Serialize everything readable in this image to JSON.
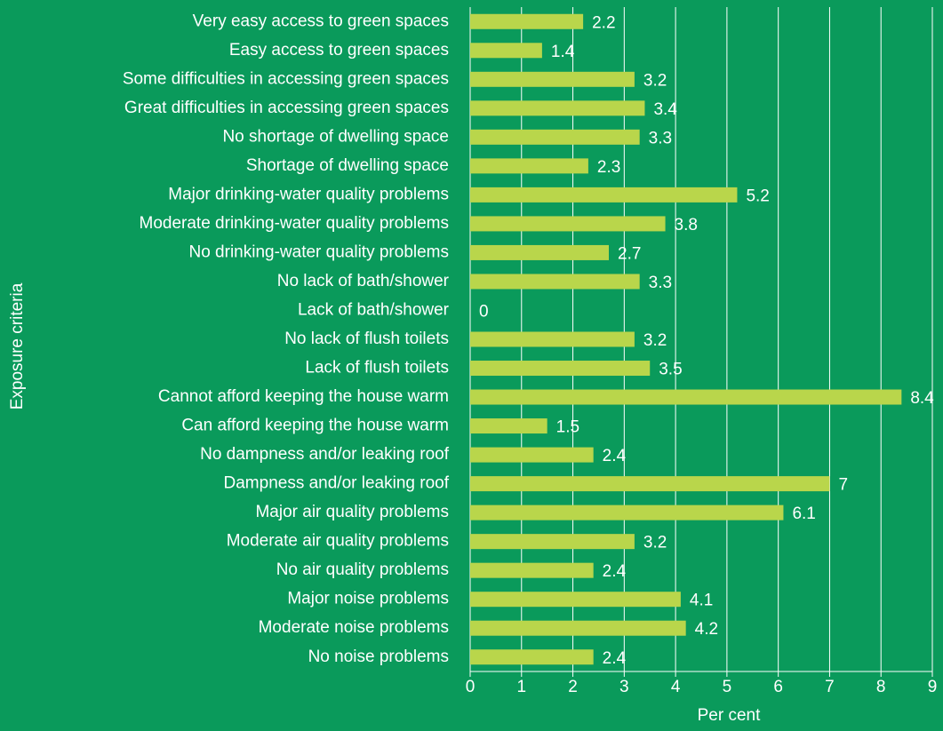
{
  "chart_data": {
    "type": "hbar",
    "xlabel": "Per cent",
    "ylabel": "Exposure criteria",
    "categories": [
      "Very easy access to green spaces",
      "Easy access to green spaces",
      "Some difficulties in accessing green spaces",
      "Great difficulties in accessing green spaces",
      "No shortage of dwelling space",
      "Shortage of dwelling space",
      "Major drinking-water quality problems",
      "Moderate drinking-water quality problems",
      "No drinking-water quality problems",
      "No lack of bath/shower",
      "Lack of bath/shower",
      "No lack of flush toilets",
      "Lack of flush toilets",
      "Cannot afford keeping the house warm",
      "Can afford keeping the house warm",
      "No dampness and/or leaking roof",
      "Dampness and/or leaking roof",
      "Major air quality problems",
      "Moderate air quality problems",
      "No air quality problems",
      "Major noise problems",
      "Moderate noise problems",
      "No noise problems"
    ],
    "values": [
      2.2,
      1.4,
      3.2,
      3.4,
      3.3,
      2.3,
      5.2,
      3.8,
      2.7,
      3.3,
      0,
      3.2,
      3.5,
      8.4,
      1.5,
      2.4,
      7,
      6.1,
      3.2,
      2.4,
      4.1,
      4.2,
      2.4
    ],
    "color": "#b9d64b",
    "xlim": [
      0,
      9
    ],
    "xticks": [
      0,
      1,
      2,
      3,
      4,
      5,
      6,
      7,
      8,
      9
    ],
    "grid": true
  }
}
